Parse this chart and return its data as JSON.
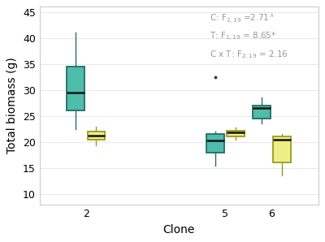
{
  "title": "",
  "xlabel": "Clone",
  "ylabel": "Total biomass (g)",
  "ylim": [
    8,
    46
  ],
  "yticks": [
    10,
    15,
    20,
    25,
    30,
    35,
    40,
    45
  ],
  "clones": [
    "2",
    "5",
    "6"
  ],
  "teal_color": "#4DBDAC",
  "yellow_color": "#EEEE88",
  "teal_edge": "#2a6b60",
  "yellow_edge": "#9a9a20",
  "median_color": "#111111",
  "background_color": "#ffffff",
  "grid_color": "#e8e8e8",
  "annotation_color": "#999999",
  "boxes": {
    "clone2_teal": {
      "q1": 26.0,
      "median": 29.5,
      "q3": 34.5,
      "whisker_low": 22.5,
      "whisker_high": 41.0,
      "outliers": []
    },
    "clone2_yellow": {
      "q1": 20.5,
      "median": 21.2,
      "q3": 22.0,
      "whisker_low": 19.3,
      "whisker_high": 23.0,
      "outliers": []
    },
    "clone5_teal": {
      "q1": 18.0,
      "median": 20.2,
      "q3": 21.5,
      "whisker_low": 15.5,
      "whisker_high": 22.0,
      "outliers": [
        32.5
      ]
    },
    "clone5_yellow": {
      "q1": 21.0,
      "median": 21.8,
      "q3": 22.2,
      "whisker_low": 20.5,
      "whisker_high": 22.8,
      "outliers": []
    },
    "clone6_teal": {
      "q1": 24.5,
      "median": 26.5,
      "q3": 27.0,
      "whisker_low": 23.5,
      "whisker_high": 28.5,
      "outliers": []
    },
    "clone6_yellow": {
      "q1": 16.0,
      "median": 20.5,
      "q3": 21.0,
      "whisker_low": 13.5,
      "whisker_high": 21.5,
      "outliers": []
    }
  },
  "positions": {
    "clone2_teal": 1.78,
    "clone2_yellow": 2.22,
    "clone5_teal": 4.78,
    "clone5_yellow": 5.22,
    "clone6_teal": 5.78,
    "clone6_yellow": 6.22
  },
  "box_width": 0.38,
  "xtick_positions": [
    2,
    5,
    6
  ],
  "xtick_labels": [
    "2",
    "5",
    "6"
  ],
  "xlim": [
    1.0,
    7.0
  ]
}
